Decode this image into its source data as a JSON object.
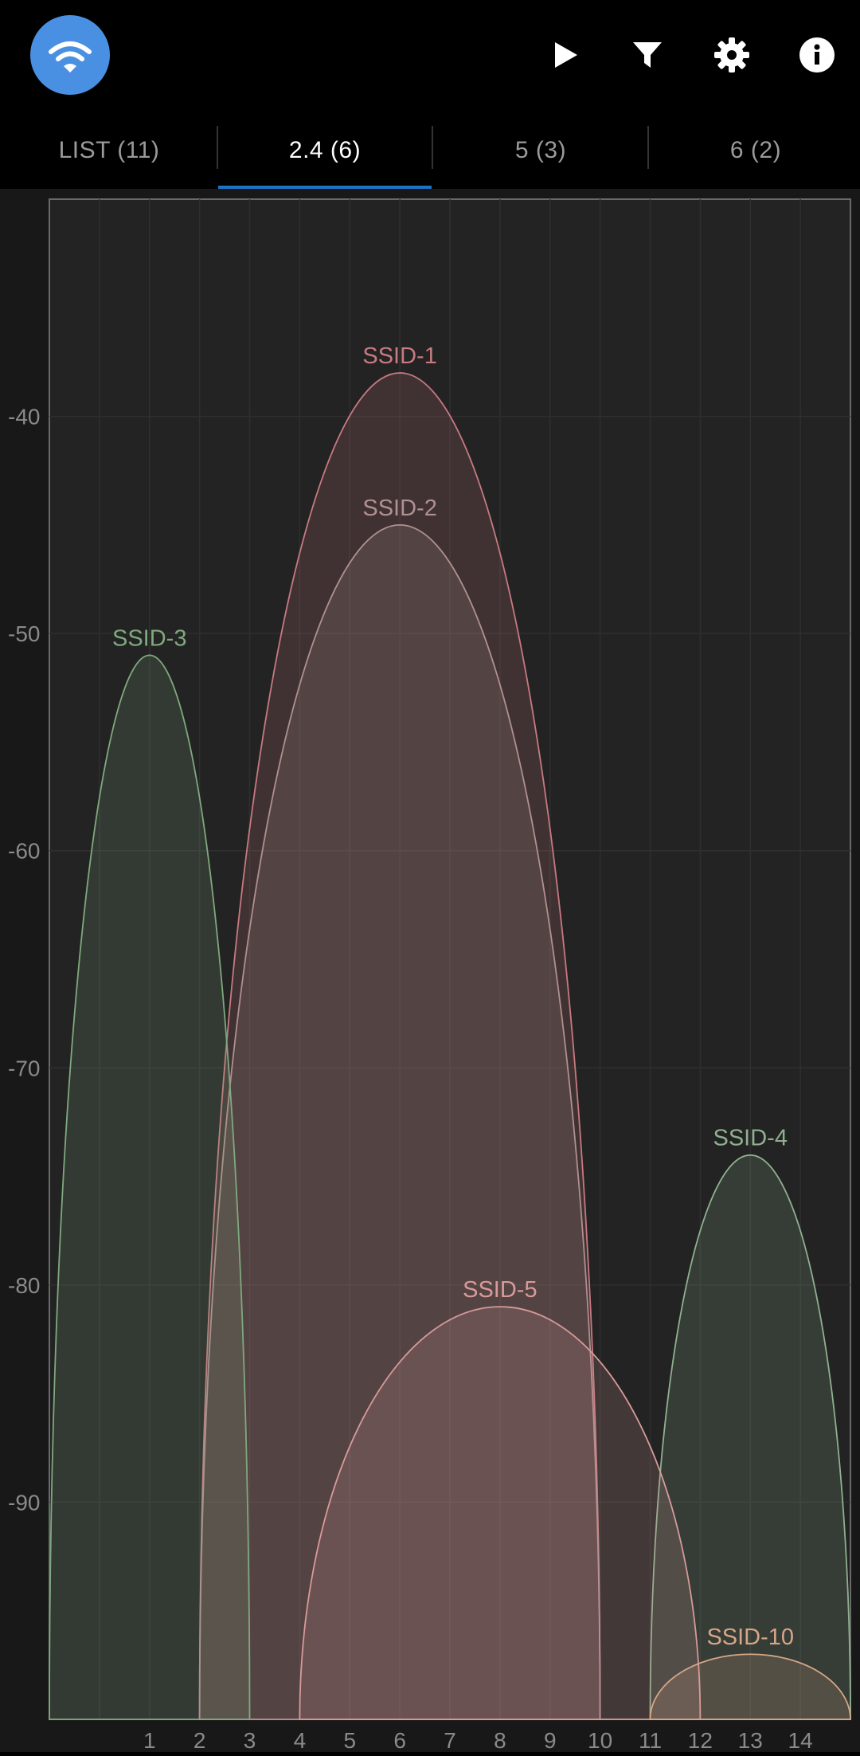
{
  "app": {
    "icon": "wifi-icon",
    "actions": [
      {
        "name": "play-button",
        "icon": "play-icon"
      },
      {
        "name": "filter-button",
        "icon": "filter-icon"
      },
      {
        "name": "settings-button",
        "icon": "gear-icon"
      },
      {
        "name": "info-button",
        "icon": "info-icon"
      }
    ],
    "accent_color": "#4a90e2"
  },
  "tabs": [
    {
      "label": "LIST (11)",
      "active": false
    },
    {
      "label": "2.4 (6)",
      "active": true
    },
    {
      "label": "5 (3)",
      "active": false
    },
    {
      "label": "6 (2)",
      "active": false
    }
  ],
  "chart_data": {
    "type": "area",
    "x_ticks": [
      "1",
      "2",
      "3",
      "4",
      "5",
      "6",
      "7",
      "8",
      "9",
      "10",
      "11",
      "12",
      "13",
      "14"
    ],
    "y_ticks": [
      "-40",
      "-50",
      "-60",
      "-70",
      "-80",
      "-90"
    ],
    "xlim": [
      -1,
      15
    ],
    "ylim": [
      -100,
      -30
    ],
    "grid": true,
    "series": [
      {
        "name": "SSID-1",
        "channel": 6,
        "width": 4,
        "level": -38,
        "color": "#c77a80"
      },
      {
        "name": "SSID-2",
        "channel": 6,
        "width": 4,
        "level": -45,
        "color": "#b09090"
      },
      {
        "name": "SSID-3",
        "channel": 1,
        "width": 2,
        "level": -51,
        "color": "#7fa97f"
      },
      {
        "name": "SSID-4",
        "channel": 13,
        "width": 2,
        "level": -74,
        "color": "#8fb08f"
      },
      {
        "name": "SSID-5",
        "channel": 8,
        "width": 4,
        "level": -81,
        "color": "#d89a9a"
      },
      {
        "name": "SSID-10",
        "channel": 13,
        "width": 2,
        "level": -97,
        "color": "#d6a687"
      }
    ]
  }
}
